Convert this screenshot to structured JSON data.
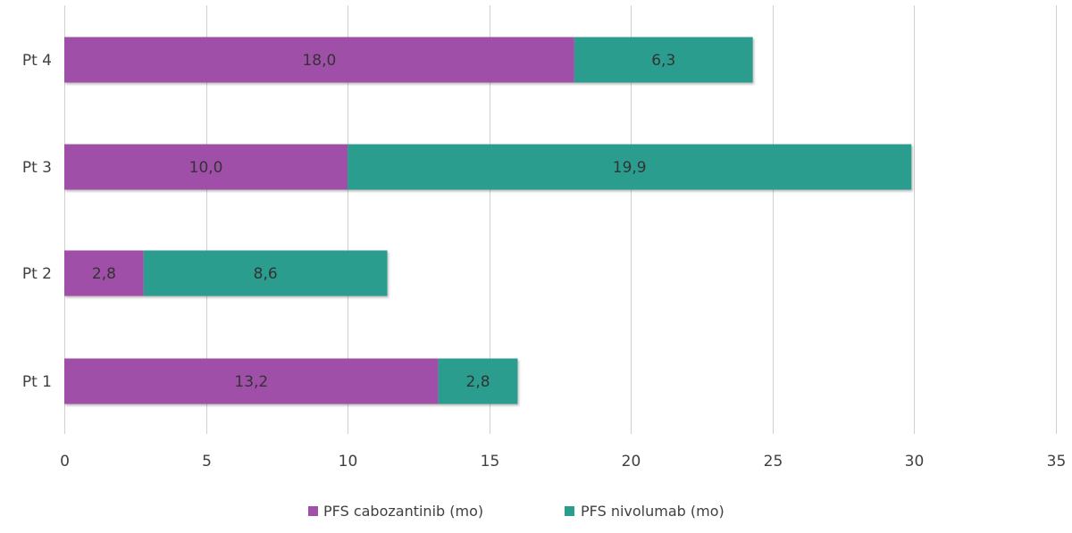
{
  "chart_data": {
    "type": "bar",
    "orientation": "horizontal",
    "stacked": true,
    "categories": [
      "Pt 1",
      "Pt 2",
      "Pt 3",
      "Pt 4"
    ],
    "series": [
      {
        "name": "PFS cabozantinib (mo)",
        "values": [
          13.2,
          2.8,
          10.0,
          18.0
        ],
        "labels": [
          "13,2",
          "2,8",
          "10,0",
          "18,0"
        ],
        "color": "#a050a8"
      },
      {
        "name": "PFS nivolumab (mo)",
        "values": [
          2.8,
          8.6,
          19.9,
          6.3
        ],
        "labels": [
          "2,8",
          "8,6",
          "19,9",
          "6,3"
        ],
        "color": "#2a9d8f"
      }
    ],
    "xlim": [
      0,
      35
    ],
    "xticks": [
      0,
      5,
      10,
      15,
      20,
      25,
      30,
      35
    ],
    "xtick_labels": [
      "0",
      "5",
      "10",
      "15",
      "20",
      "25",
      "30",
      "35"
    ],
    "grid": true,
    "legend_position": "bottom"
  }
}
